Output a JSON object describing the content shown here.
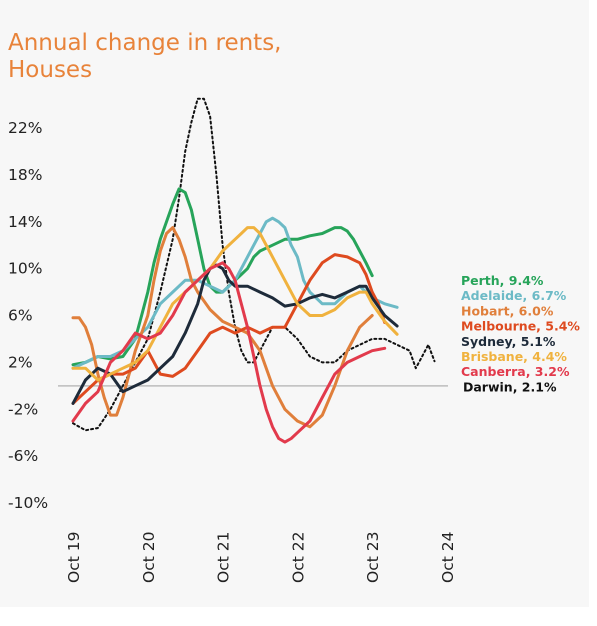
{
  "chart_data": {
    "type": "line",
    "title": "Annual change in rents, Houses",
    "xlabel": "",
    "ylabel": "",
    "x_range": [
      "2019-10",
      "2024-10"
    ],
    "ylim": [
      -10,
      24
    ],
    "y_ticks": [
      "22%",
      "18%",
      "14%",
      "10%",
      "6%",
      "2%",
      "-2%",
      "-6%",
      "-10%"
    ],
    "y_tick_values": [
      22,
      18,
      14,
      10,
      6,
      2,
      -2,
      -6,
      -10
    ],
    "x_ticks": [
      "Oct 19",
      "Oct 20",
      "Oct 21",
      "Oct 22",
      "Oct 23",
      "Oct 24"
    ],
    "x_tick_values": [
      0,
      12,
      24,
      36,
      48,
      60
    ],
    "zero_line": true,
    "grid": false,
    "legend_placement": "right end labels",
    "series": [
      {
        "name": "Darwin",
        "label": "Darwin, 2.1%",
        "color": "#111111",
        "dash": true,
        "values": [
          [
            0,
            -3.2
          ],
          [
            2,
            -3.8
          ],
          [
            4,
            -3.6
          ],
          [
            6,
            -2
          ],
          [
            8,
            0
          ],
          [
            10,
            2
          ],
          [
            12,
            4
          ],
          [
            14,
            8
          ],
          [
            16,
            12.5
          ],
          [
            17,
            16
          ],
          [
            18,
            20
          ],
          [
            19,
            22.5
          ],
          [
            20,
            24.5
          ],
          [
            21,
            24.5
          ],
          [
            22,
            23
          ],
          [
            23,
            18
          ],
          [
            24,
            12
          ],
          [
            25,
            8
          ],
          [
            26,
            5
          ],
          [
            27,
            3
          ],
          [
            28,
            2
          ],
          [
            29,
            2
          ],
          [
            30,
            3
          ],
          [
            32,
            5
          ],
          [
            34,
            5
          ],
          [
            36,
            4
          ],
          [
            38,
            2.5
          ],
          [
            40,
            2
          ],
          [
            42,
            2
          ],
          [
            44,
            3
          ],
          [
            46,
            3.5
          ],
          [
            48,
            4
          ],
          [
            50,
            4
          ],
          [
            52,
            3.5
          ],
          [
            54,
            3
          ],
          [
            55,
            1.5
          ],
          [
            56,
            2.5
          ],
          [
            57,
            3.5
          ],
          [
            58,
            2.1
          ]
        ]
      },
      {
        "name": "Perth",
        "label": "Perth, 9.4%",
        "color": "#27a45a",
        "values": [
          [
            0,
            1.8
          ],
          [
            2,
            2
          ],
          [
            4,
            2.5
          ],
          [
            6,
            2.3
          ],
          [
            8,
            2.5
          ],
          [
            10,
            4
          ],
          [
            11,
            6
          ],
          [
            12,
            8
          ],
          [
            13,
            10.5
          ],
          [
            14,
            12.5
          ],
          [
            15,
            14
          ],
          [
            16,
            15.5
          ],
          [
            17,
            16.8
          ],
          [
            18,
            16.5
          ],
          [
            19,
            15
          ],
          [
            20,
            12.5
          ],
          [
            21,
            10
          ],
          [
            22,
            8.5
          ],
          [
            23,
            8
          ],
          [
            24,
            8
          ],
          [
            25,
            8.5
          ],
          [
            26,
            9
          ],
          [
            27,
            9.5
          ],
          [
            28,
            10
          ],
          [
            29,
            11
          ],
          [
            30,
            11.5
          ],
          [
            32,
            12
          ],
          [
            34,
            12.5
          ],
          [
            36,
            12.5
          ],
          [
            38,
            12.8
          ],
          [
            40,
            13
          ],
          [
            42,
            13.5
          ],
          [
            43,
            13.5
          ],
          [
            44,
            13.2
          ],
          [
            45,
            12.5
          ],
          [
            46,
            11.5
          ],
          [
            47,
            10.5
          ],
          [
            48,
            9.4
          ]
        ]
      },
      {
        "name": "Adelaide",
        "label": "Adelaide, 6.7%",
        "color": "#6cbac6",
        "values": [
          [
            0,
            1.5
          ],
          [
            2,
            2
          ],
          [
            4,
            2.5
          ],
          [
            6,
            2.5
          ],
          [
            8,
            3
          ],
          [
            10,
            4
          ],
          [
            12,
            5
          ],
          [
            14,
            7
          ],
          [
            16,
            8
          ],
          [
            18,
            9
          ],
          [
            20,
            9
          ],
          [
            22,
            8.5
          ],
          [
            24,
            8
          ],
          [
            26,
            9
          ],
          [
            28,
            11
          ],
          [
            30,
            13
          ],
          [
            31,
            14
          ],
          [
            32,
            14.3
          ],
          [
            33,
            14
          ],
          [
            34,
            13.5
          ],
          [
            35,
            12
          ],
          [
            36,
            11
          ],
          [
            37,
            9
          ],
          [
            38,
            8
          ],
          [
            39,
            7.5
          ],
          [
            40,
            7
          ],
          [
            42,
            7
          ],
          [
            44,
            8
          ],
          [
            46,
            8.5
          ],
          [
            48,
            7.5
          ],
          [
            50,
            7
          ],
          [
            52,
            6.7
          ]
        ]
      },
      {
        "name": "Hobart",
        "label": "Hobart, 6.0%",
        "color": "#e07f3b",
        "values": [
          [
            0,
            5.8
          ],
          [
            1,
            5.8
          ],
          [
            2,
            5
          ],
          [
            3,
            3.5
          ],
          [
            4,
            1
          ],
          [
            5,
            -1
          ],
          [
            6,
            -2.5
          ],
          [
            7,
            -2.5
          ],
          [
            8,
            -1
          ],
          [
            9,
            1
          ],
          [
            10,
            3
          ],
          [
            11,
            4.5
          ],
          [
            12,
            6
          ],
          [
            13,
            9
          ],
          [
            14,
            11.5
          ],
          [
            15,
            13
          ],
          [
            16,
            13.5
          ],
          [
            17,
            12.5
          ],
          [
            18,
            11
          ],
          [
            19,
            9
          ],
          [
            20,
            8
          ],
          [
            22,
            6.5
          ],
          [
            24,
            5.5
          ],
          [
            26,
            5
          ],
          [
            28,
            4.5
          ],
          [
            30,
            3
          ],
          [
            32,
            0
          ],
          [
            34,
            -2
          ],
          [
            36,
            -3
          ],
          [
            38,
            -3.5
          ],
          [
            40,
            -2.5
          ],
          [
            42,
            0
          ],
          [
            44,
            3
          ],
          [
            46,
            5
          ],
          [
            48,
            6
          ]
        ]
      },
      {
        "name": "Melbourne",
        "label": "Melbourne, 5.4%",
        "color": "#de4a1f",
        "values": [
          [
            0,
            -1.5
          ],
          [
            2,
            -0.5
          ],
          [
            4,
            0.5
          ],
          [
            6,
            1
          ],
          [
            8,
            1
          ],
          [
            10,
            1.5
          ],
          [
            12,
            3
          ],
          [
            14,
            1
          ],
          [
            16,
            0.8
          ],
          [
            18,
            1.5
          ],
          [
            20,
            3
          ],
          [
            22,
            4.5
          ],
          [
            24,
            5
          ],
          [
            26,
            4.5
          ],
          [
            28,
            5
          ],
          [
            30,
            4.5
          ],
          [
            32,
            5
          ],
          [
            34,
            5
          ],
          [
            36,
            7
          ],
          [
            38,
            9
          ],
          [
            40,
            10.5
          ],
          [
            42,
            11.2
          ],
          [
            44,
            11
          ],
          [
            46,
            10.5
          ],
          [
            47,
            9.5
          ],
          [
            48,
            8
          ],
          [
            49,
            7
          ],
          [
            50,
            5.4
          ]
        ]
      },
      {
        "name": "Sydney",
        "label": "Sydney, 5.1%",
        "color": "#1e2b3a",
        "values": [
          [
            0,
            -1.5
          ],
          [
            2,
            0.5
          ],
          [
            4,
            1.5
          ],
          [
            6,
            1
          ],
          [
            8,
            -0.5
          ],
          [
            10,
            0
          ],
          [
            12,
            0.5
          ],
          [
            14,
            1.5
          ],
          [
            16,
            2.5
          ],
          [
            18,
            4.5
          ],
          [
            20,
            7
          ],
          [
            21,
            9
          ],
          [
            22,
            10
          ],
          [
            23,
            10.3
          ],
          [
            24,
            10
          ],
          [
            25,
            9
          ],
          [
            26,
            8.5
          ],
          [
            28,
            8.5
          ],
          [
            30,
            8
          ],
          [
            32,
            7.5
          ],
          [
            34,
            6.8
          ],
          [
            36,
            7
          ],
          [
            38,
            7.5
          ],
          [
            40,
            7.8
          ],
          [
            42,
            7.5
          ],
          [
            44,
            8
          ],
          [
            46,
            8.5
          ],
          [
            47,
            8.5
          ],
          [
            48,
            7.5
          ],
          [
            50,
            6
          ],
          [
            52,
            5.1
          ]
        ]
      },
      {
        "name": "Brisbane",
        "label": "Brisbane, 4.4%",
        "color": "#f0b23e",
        "values": [
          [
            0,
            1.5
          ],
          [
            2,
            1.5
          ],
          [
            4,
            0.5
          ],
          [
            6,
            1
          ],
          [
            8,
            1.5
          ],
          [
            10,
            2
          ],
          [
            12,
            3
          ],
          [
            14,
            5
          ],
          [
            16,
            7
          ],
          [
            18,
            8
          ],
          [
            20,
            9
          ],
          [
            22,
            10
          ],
          [
            24,
            11.5
          ],
          [
            26,
            12.5
          ],
          [
            27,
            13
          ],
          [
            28,
            13.5
          ],
          [
            29,
            13.5
          ],
          [
            30,
            13
          ],
          [
            32,
            11
          ],
          [
            34,
            9
          ],
          [
            36,
            7
          ],
          [
            38,
            6
          ],
          [
            40,
            6
          ],
          [
            42,
            6.5
          ],
          [
            44,
            7.5
          ],
          [
            46,
            8
          ],
          [
            47,
            8
          ],
          [
            48,
            7
          ],
          [
            50,
            5.5
          ],
          [
            52,
            4.4
          ]
        ]
      },
      {
        "name": "Canberra",
        "label": "Canberra, 3.2%",
        "color": "#e23a4c",
        "values": [
          [
            0,
            -3
          ],
          [
            2,
            -1.5
          ],
          [
            4,
            -0.5
          ],
          [
            6,
            2
          ],
          [
            8,
            3
          ],
          [
            10,
            4.5
          ],
          [
            12,
            4
          ],
          [
            14,
            4.5
          ],
          [
            16,
            6
          ],
          [
            18,
            8
          ],
          [
            20,
            9
          ],
          [
            22,
            10
          ],
          [
            24,
            10.5
          ],
          [
            25,
            10
          ],
          [
            26,
            9
          ],
          [
            27,
            7
          ],
          [
            28,
            5
          ],
          [
            29,
            2.5
          ],
          [
            30,
            0
          ],
          [
            31,
            -2
          ],
          [
            32,
            -3.5
          ],
          [
            33,
            -4.5
          ],
          [
            34,
            -4.8
          ],
          [
            35,
            -4.5
          ],
          [
            36,
            -4
          ],
          [
            38,
            -3
          ],
          [
            40,
            -1
          ],
          [
            42,
            1
          ],
          [
            44,
            2
          ],
          [
            46,
            2.5
          ],
          [
            48,
            3
          ],
          [
            50,
            3.2
          ]
        ]
      }
    ]
  }
}
